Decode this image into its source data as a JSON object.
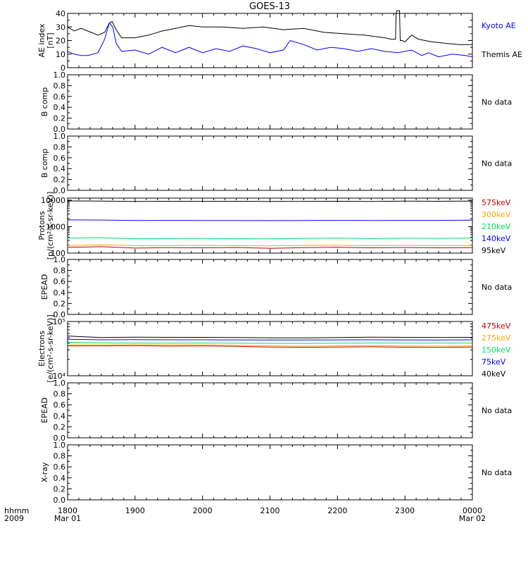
{
  "title": "GOES-13",
  "time_axis": {
    "corner_top": "hhmm",
    "corner_bottom": "2009",
    "ticks": [
      "1800",
      "1900",
      "2000",
      "2100",
      "2200",
      "2300",
      "0000"
    ],
    "dates": [
      "Mar 01",
      "Mar 02"
    ]
  },
  "colors": {
    "black": "#000000",
    "blue": "#0000ff",
    "green": "#00e060",
    "orange": "#ffa500",
    "red": "#c00000"
  },
  "chart_data": [
    {
      "id": "ae",
      "type": "line",
      "ylabel": "AE index",
      "ylabel2": "[nT]",
      "ylim": [
        0,
        40
      ],
      "yticks": [
        "0",
        "10",
        "20",
        "30",
        "40"
      ],
      "xrange_hours": [
        18,
        24
      ],
      "series": [
        {
          "name": "Themis AE",
          "color": "#000000",
          "x": [
            18.0,
            18.1,
            18.2,
            18.35,
            18.45,
            18.55,
            18.62,
            18.66,
            18.72,
            18.8,
            19.0,
            19.2,
            19.4,
            19.6,
            19.8,
            20.0,
            20.3,
            20.6,
            20.9,
            21.2,
            21.5,
            21.8,
            22.1,
            22.4,
            22.7,
            22.8,
            22.86,
            22.87,
            22.88,
            22.92,
            22.93,
            22.96,
            23.0,
            23.1,
            23.2,
            23.3,
            23.4,
            23.6,
            23.8,
            24.0
          ],
          "y": [
            30,
            27,
            29,
            26,
            24,
            26,
            33,
            34,
            28,
            22,
            22,
            24,
            27,
            29,
            31,
            30,
            30,
            29,
            30,
            28,
            29,
            26,
            25,
            24,
            22,
            21,
            21,
            40,
            42,
            42,
            20,
            20,
            19,
            24,
            21,
            20,
            19,
            18,
            17,
            17
          ]
        },
        {
          "name": "Kyoto AE",
          "color": "#0000ff",
          "x": [
            18.0,
            18.1,
            18.2,
            18.3,
            18.45,
            18.55,
            18.62,
            18.67,
            18.72,
            18.8,
            19.0,
            19.2,
            19.4,
            19.6,
            19.8,
            20.0,
            20.2,
            20.4,
            20.6,
            20.8,
            21.0,
            21.2,
            21.3,
            21.5,
            21.7,
            21.9,
            22.1,
            22.3,
            22.5,
            22.7,
            22.9,
            23.1,
            23.25,
            23.35,
            23.5,
            23.7,
            23.9,
            24.0
          ],
          "y": [
            12,
            10,
            9,
            9,
            11,
            21,
            33,
            30,
            18,
            12,
            13,
            10,
            15,
            11,
            15,
            11,
            14,
            12,
            16,
            14,
            11,
            13,
            20,
            17,
            13,
            15,
            14,
            12,
            14,
            12,
            11,
            13,
            9,
            11,
            8,
            10,
            9,
            8
          ]
        }
      ]
    },
    {
      "id": "bcomp1",
      "type": "line",
      "ylabel": "B comp",
      "ylim": [
        0,
        1
      ],
      "yticks": [
        "0.0",
        "0.2",
        "0.4",
        "0.6",
        "0.8",
        "1.0"
      ],
      "series": [],
      "status": "No data"
    },
    {
      "id": "bcomp2",
      "type": "line",
      "ylabel": "B comp",
      "ylim": [
        0,
        1
      ],
      "yticks": [
        "0.0",
        "0.2",
        "0.4",
        "0.6",
        "0.8",
        "1.0"
      ],
      "series": [],
      "status": "No data"
    },
    {
      "id": "protons",
      "type": "line",
      "scale": "log",
      "ylabel": "Protons",
      "ylabel2": "[p/(cm²-s-sr-keV)]",
      "ylim": [
        100,
        12000
      ],
      "yticks": [
        "100",
        "1000",
        "10000"
      ],
      "xrange_hours": [
        18,
        24
      ],
      "series": [
        {
          "name": "575keV",
          "color": "#c00000",
          "x": [
            18.0,
            18.5,
            19.0,
            19.5,
            20.0,
            20.5,
            21.0,
            21.5,
            22.0,
            22.5,
            23.0,
            23.5,
            24.0
          ],
          "y": [
            165,
            175,
            155,
            160,
            158,
            162,
            152,
            160,
            165,
            158,
            162,
            158,
            160
          ]
        },
        {
          "name": "300keV",
          "color": "#ffa500",
          "x": [
            18.0,
            18.5,
            19.0,
            19.5,
            20.0,
            20.5,
            21.0,
            21.5,
            22.0,
            22.5,
            23.0,
            23.5,
            24.0
          ],
          "y": [
            195,
            205,
            190,
            192,
            195,
            190,
            188,
            195,
            198,
            192,
            195,
            192,
            195
          ]
        },
        {
          "name": "210keV",
          "color": "#00e060",
          "x": [
            18.0,
            18.5,
            19.0,
            19.5,
            20.0,
            20.5,
            21.0,
            21.5,
            22.0,
            22.5,
            23.0,
            23.5,
            24.0
          ],
          "y": [
            370,
            380,
            350,
            355,
            360,
            350,
            345,
            360,
            370,
            355,
            365,
            360,
            370
          ]
        },
        {
          "name": "140keV",
          "color": "#0000ff",
          "x": [
            18.0,
            18.5,
            19.0,
            19.5,
            20.0,
            20.5,
            21.0,
            21.5,
            22.0,
            22.5,
            23.0,
            23.5,
            24.0
          ],
          "y": [
            1800,
            1780,
            1700,
            1720,
            1700,
            1710,
            1690,
            1700,
            1720,
            1710,
            1730,
            1720,
            1760
          ]
        },
        {
          "name": "95keV",
          "color": "#000000",
          "x": [
            18.0,
            18.5,
            19.0,
            19.5,
            20.0,
            20.5,
            21.0,
            21.5,
            22.0,
            22.5,
            23.0,
            23.5,
            24.0
          ],
          "y": [
            9400,
            9300,
            9000,
            9100,
            9050,
            9100,
            9000,
            9050,
            9100,
            9000,
            9200,
            9100,
            9300
          ]
        }
      ]
    },
    {
      "id": "epead1",
      "type": "line",
      "ylabel": "EPEAD",
      "ylim": [
        0,
        1
      ],
      "yticks": [
        "0.0",
        "0.2",
        "0.4",
        "0.6",
        "0.8",
        "1.0"
      ],
      "series": [],
      "status": "No data"
    },
    {
      "id": "electrons",
      "type": "line",
      "scale": "log",
      "ylabel": "Electrons",
      "ylabel2": "[e/(cm²-s-sr-keV)]",
      "ylim": [
        10000,
        100000
      ],
      "yticks": [
        "10⁴",
        "10⁵"
      ],
      "xrange_hours": [
        18,
        24
      ],
      "series": [
        {
          "name": "475keV",
          "color": "#c00000",
          "x": [
            18.0,
            18.5,
            19.0,
            19.5,
            20.0,
            20.5,
            21.0,
            21.5,
            22.0,
            22.5,
            23.0,
            23.5,
            24.0
          ],
          "y": [
            35500,
            35500,
            35800,
            35200,
            35500,
            34800,
            33800,
            33500,
            33800,
            34200,
            33600,
            33400,
            33800
          ]
        },
        {
          "name": "275keV",
          "color": "#ffa500",
          "x": [
            18.0,
            18.5,
            19.0,
            19.5,
            20.0,
            20.5,
            21.0,
            21.5,
            22.0,
            22.5,
            23.0,
            23.5,
            24.0
          ],
          "y": [
            37000,
            37200,
            37400,
            37000,
            37200,
            36500,
            35500,
            35200,
            35500,
            36000,
            35300,
            35200,
            35500
          ]
        },
        {
          "name": "150keV",
          "color": "#00e060",
          "x": [
            18.0,
            18.5,
            19.0,
            19.5,
            20.0,
            20.5,
            21.0,
            21.5,
            22.0,
            22.5,
            23.0,
            23.5,
            24.0
          ],
          "y": [
            41500,
            40500,
            40000,
            40000,
            40200,
            39800,
            39500,
            39500,
            39800,
            40200,
            40000,
            40000,
            40200
          ]
        },
        {
          "name": "75keV",
          "color": "#0000ff",
          "x": [
            18.0,
            18.5,
            19.0,
            19.5,
            20.0,
            20.5,
            21.0,
            21.5,
            22.0,
            22.5,
            23.0,
            23.5,
            24.0
          ],
          "y": [
            47000,
            46000,
            46200,
            46000,
            46000,
            45800,
            45500,
            45500,
            45800,
            46000,
            45800,
            45700,
            46000
          ]
        },
        {
          "name": "40keV",
          "color": "#000000",
          "x": [
            18.0,
            18.5,
            19.0,
            19.5,
            20.0,
            20.5,
            21.0,
            21.5,
            22.0,
            22.5,
            23.0,
            23.5,
            24.0
          ],
          "y": [
            54000,
            50500,
            51500,
            51000,
            51000,
            50500,
            50000,
            50000,
            50500,
            51500,
            51000,
            50800,
            51000
          ]
        }
      ]
    },
    {
      "id": "epead2",
      "type": "line",
      "ylabel": "EPEAD",
      "ylim": [
        0,
        1
      ],
      "yticks": [
        "0.0",
        "0.2",
        "0.4",
        "0.6",
        "0.8",
        "1.0"
      ],
      "series": [],
      "status": "No data"
    },
    {
      "id": "xray",
      "type": "line",
      "ylabel": "X-ray",
      "ylim": [
        0,
        1
      ],
      "yticks": [
        "0.0",
        "0.2",
        "0.4",
        "0.6",
        "0.8",
        "1.0"
      ],
      "series": [],
      "status": "No data"
    }
  ]
}
